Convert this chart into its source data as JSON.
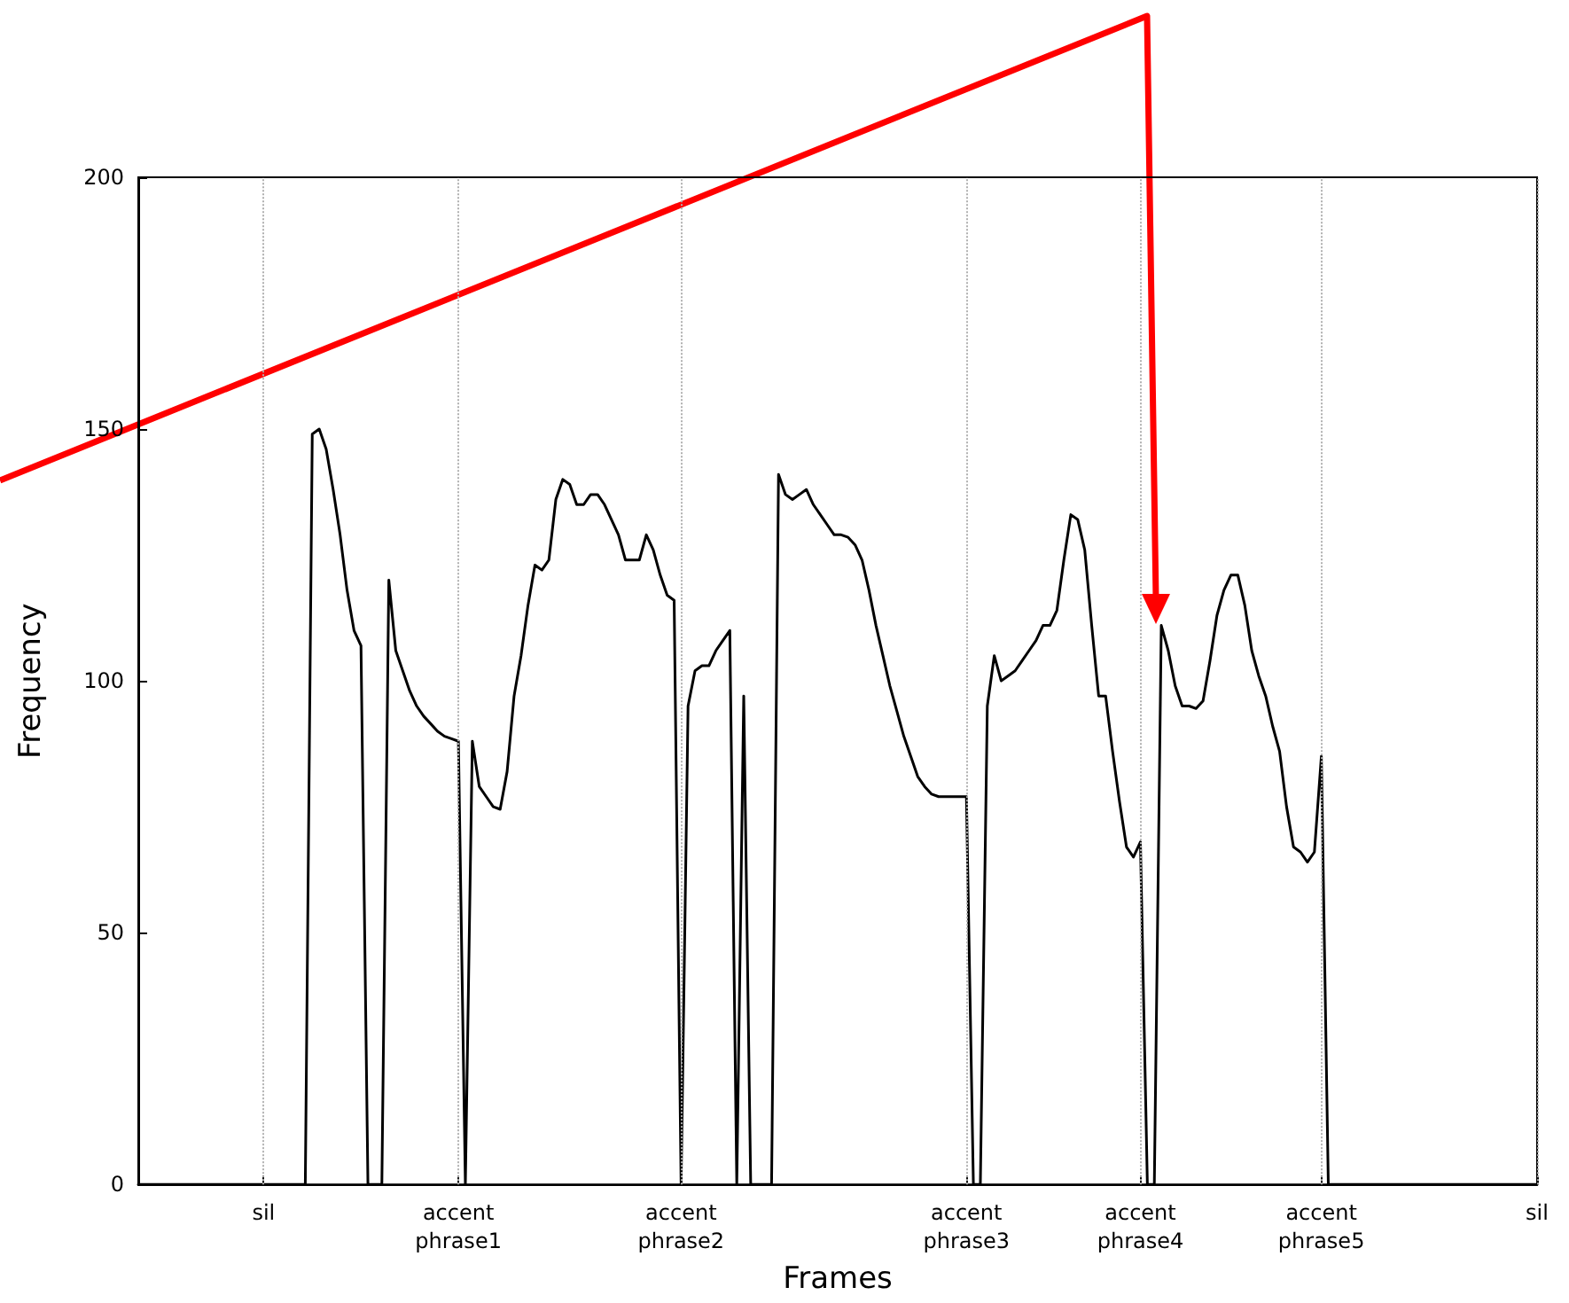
{
  "chart_data": {
    "type": "line",
    "xlabel": "Frames",
    "ylabel": "Frequency",
    "ylim": [
      0,
      200
    ],
    "yticks": [
      0,
      50,
      100,
      150,
      200
    ],
    "categories": [
      null,
      null,
      null,
      null,
      null,
      null,
      null,
      null,
      null,
      null,
      null,
      null,
      null,
      null,
      null,
      null,
      null,
      null,
      "sil",
      null,
      null,
      null,
      null,
      null,
      null,
      null,
      null,
      null,
      null,
      null,
      null,
      null,
      null,
      null,
      null,
      null,
      null,
      null,
      null,
      null,
      null,
      null,
      null,
      null,
      null,
      null,
      "accent\nphrase1",
      null,
      null,
      null,
      null,
      null,
      null,
      null,
      null,
      null,
      null,
      null,
      null,
      null,
      null,
      null,
      null,
      null,
      null,
      null,
      null,
      null,
      null,
      null,
      null,
      null,
      null,
      null,
      null,
      null,
      null,
      null,
      "accent\nphrase2",
      null,
      null,
      null,
      null,
      null,
      null,
      null,
      null,
      null,
      null,
      null,
      null,
      null,
      null,
      null,
      null,
      null,
      null,
      null,
      null,
      null,
      null,
      null,
      null,
      null,
      null,
      null,
      null,
      null,
      null,
      null,
      null,
      null,
      null,
      null,
      null,
      null,
      null,
      null,
      null,
      "accent\nphrase3",
      null,
      null,
      null,
      null,
      null,
      null,
      null,
      null,
      null,
      null,
      null,
      null,
      null,
      null,
      null,
      null,
      null,
      null,
      null,
      null,
      null,
      null,
      null,
      null,
      "accent\nphrase4",
      null,
      null,
      null,
      null,
      null,
      null,
      null,
      null,
      null,
      null,
      null,
      null,
      null,
      null,
      null,
      null,
      null,
      null,
      null,
      null,
      null,
      null,
      null,
      null,
      null,
      "accent\nphrase5",
      null,
      null,
      null,
      null,
      null,
      null,
      null,
      null,
      null,
      null,
      null,
      null,
      null,
      null,
      null,
      null,
      null,
      null,
      null,
      null,
      null,
      null,
      null,
      null,
      null,
      null,
      null,
      null,
      null,
      null,
      "sil"
    ],
    "grid": "x",
    "marker": "none",
    "line_style": "solid",
    "series": [
      {
        "color": "#000000",
        "values": [
          0,
          0,
          0,
          0,
          0,
          0,
          0,
          0,
          0,
          0,
          0,
          0,
          0,
          0,
          0,
          0,
          0,
          0,
          0,
          0,
          0,
          0,
          0,
          0,
          0,
          149,
          150,
          146,
          138,
          129,
          118,
          110,
          107,
          0,
          0,
          0,
          120,
          106,
          102,
          98,
          95,
          93,
          91.5,
          90,
          89,
          88.5,
          88,
          0,
          88,
          79,
          77,
          75,
          74.5,
          82,
          97,
          105,
          115,
          123,
          122,
          124,
          136,
          140,
          139,
          135,
          135,
          137,
          137,
          135,
          132,
          129,
          124,
          124,
          124,
          129,
          126,
          121,
          117,
          116,
          0,
          95,
          102,
          103,
          103,
          106,
          108,
          110,
          0,
          97,
          0,
          0,
          0,
          0,
          141,
          137,
          136,
          137,
          138,
          135,
          133,
          131,
          129,
          129,
          128.5,
          127,
          124,
          118,
          111,
          105,
          99,
          94,
          89,
          85,
          81,
          79,
          77.5,
          77,
          77,
          77,
          77,
          77,
          0,
          0,
          95,
          105,
          100,
          101,
          102,
          104,
          106,
          108,
          111,
          111,
          114,
          124,
          133,
          132,
          126,
          111,
          97,
          97,
          86,
          76,
          67,
          65,
          68,
          0,
          0,
          111,
          106,
          99,
          95,
          95,
          94.5,
          96,
          104,
          113,
          118,
          121,
          121,
          115,
          106,
          101,
          97,
          91,
          86,
          75,
          67,
          66,
          64,
          66,
          85,
          0,
          0,
          0,
          0,
          0,
          0,
          0,
          0,
          0,
          0,
          0,
          0,
          0,
          0,
          0,
          0,
          0,
          0,
          0,
          0,
          0,
          0,
          0,
          0,
          0,
          0,
          0,
          0,
          0,
          0,
          0
        ]
      }
    ]
  }
}
